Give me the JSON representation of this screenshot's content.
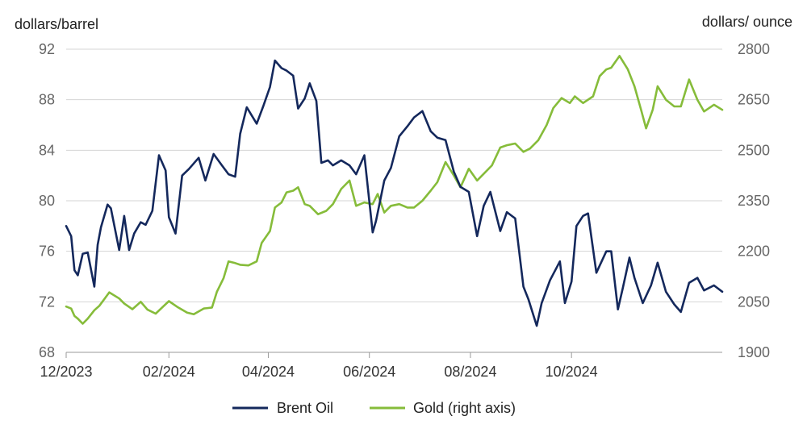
{
  "chart_data": {
    "type": "line",
    "title": "",
    "ylabel_left": "dollars/barrel",
    "ylabel_right": "dollars/ ounce",
    "x_ticks": [
      "12/2023",
      "02/2024",
      "04/2024",
      "06/2024",
      "08/2024",
      "10/2024"
    ],
    "x_range": [
      "2023-12-01",
      "2024-12-31"
    ],
    "y_left": {
      "lim": [
        68,
        92
      ],
      "ticks": [
        "68",
        "72",
        "76",
        "80",
        "84",
        "88",
        "92"
      ]
    },
    "y_right": {
      "lim": [
        1900,
        2800
      ],
      "ticks": [
        "1900",
        "2050",
        "2200",
        "2350",
        "2500",
        "2650",
        "2800"
      ]
    },
    "grid": "horizontal",
    "legend_position": "bottom-center",
    "series": [
      {
        "name": "Brent Oil",
        "axis": "left",
        "color": "#14285c",
        "x": [
          "2023-12-01",
          "2023-12-04",
          "2023-12-06",
          "2023-12-08",
          "2023-12-11",
          "2023-12-14",
          "2023-12-18",
          "2023-12-20",
          "2023-12-22",
          "2023-12-26",
          "2023-12-28",
          "2024-01-02",
          "2024-01-05",
          "2024-01-08",
          "2024-01-11",
          "2024-01-15",
          "2024-01-18",
          "2024-01-22",
          "2024-01-26",
          "2024-01-30",
          "2024-02-01",
          "2024-02-05",
          "2024-02-09",
          "2024-02-13",
          "2024-02-19",
          "2024-02-23",
          "2024-02-28",
          "2024-03-04",
          "2024-03-08",
          "2024-03-12",
          "2024-03-15",
          "2024-03-19",
          "2024-03-25",
          "2024-03-29",
          "2024-04-02",
          "2024-04-05",
          "2024-04-09",
          "2024-04-12",
          "2024-04-16",
          "2024-04-19",
          "2024-04-23",
          "2024-04-26",
          "2024-04-30",
          "2024-05-03",
          "2024-05-07",
          "2024-05-10",
          "2024-05-15",
          "2024-05-20",
          "2024-05-24",
          "2024-05-29",
          "2024-06-03",
          "2024-06-05",
          "2024-06-10",
          "2024-06-14",
          "2024-06-19",
          "2024-06-24",
          "2024-06-28",
          "2024-07-03",
          "2024-07-08",
          "2024-07-12",
          "2024-07-17",
          "2024-07-22",
          "2024-07-26",
          "2024-07-31",
          "2024-08-05",
          "2024-08-09",
          "2024-08-13",
          "2024-08-19",
          "2024-08-23",
          "2024-08-28",
          "2024-09-02",
          "2024-09-05",
          "2024-09-10",
          "2024-09-13",
          "2024-09-18",
          "2024-09-24",
          "2024-09-27",
          "2024-10-01",
          "2024-10-04",
          "2024-10-08",
          "2024-10-11",
          "2024-10-16",
          "2024-10-22",
          "2024-10-25",
          "2024-10-29",
          "2024-11-01",
          "2024-11-05",
          "2024-11-08",
          "2024-11-13",
          "2024-11-18",
          "2024-11-22",
          "2024-11-27",
          "2024-12-02",
          "2024-12-06",
          "2024-12-11",
          "2024-12-16",
          "2024-12-20",
          "2024-12-26",
          "2024-12-31"
        ],
        "y": [
          78.0,
          77.2,
          74.5,
          74.1,
          75.8,
          75.9,
          73.2,
          76.5,
          77.9,
          79.7,
          79.4,
          76.1,
          78.8,
          76.1,
          77.4,
          78.3,
          78.1,
          79.2,
          83.6,
          82.4,
          78.7,
          77.4,
          82.0,
          82.5,
          83.4,
          81.6,
          83.7,
          82.8,
          82.1,
          81.9,
          85.3,
          87.4,
          86.1,
          87.5,
          89.0,
          91.1,
          90.5,
          90.3,
          89.9,
          87.3,
          88.1,
          89.3,
          87.9,
          83.0,
          83.2,
          82.8,
          83.2,
          82.8,
          82.1,
          83.6,
          77.5,
          78.4,
          81.6,
          82.6,
          85.1,
          85.9,
          86.6,
          87.1,
          85.5,
          85.0,
          84.8,
          82.3,
          81.1,
          80.7,
          77.2,
          79.6,
          80.7,
          77.6,
          79.1,
          78.6,
          73.2,
          72.2,
          70.1,
          71.9,
          73.7,
          75.2,
          71.9,
          73.6,
          78.0,
          78.8,
          79.0,
          74.3,
          76.0,
          76.0,
          71.4,
          73.1,
          75.5,
          73.9,
          71.9,
          73.3,
          75.1,
          72.8,
          71.8,
          71.2,
          73.5,
          73.9,
          72.9,
          73.3,
          72.8
        ]
      },
      {
        "name": "Gold (right axis)",
        "axis": "right",
        "color": "#86bc3a",
        "x": [
          "2023-12-01",
          "2023-12-04",
          "2023-12-06",
          "2023-12-08",
          "2023-12-11",
          "2023-12-14",
          "2023-12-18",
          "2023-12-21",
          "2023-12-27",
          "2024-01-02",
          "2024-01-05",
          "2024-01-10",
          "2024-01-15",
          "2024-01-19",
          "2024-01-24",
          "2024-01-29",
          "2024-02-01",
          "2024-02-06",
          "2024-02-12",
          "2024-02-16",
          "2024-02-22",
          "2024-02-27",
          "2024-03-01",
          "2024-03-05",
          "2024-03-08",
          "2024-03-12",
          "2024-03-15",
          "2024-03-20",
          "2024-03-25",
          "2024-03-28",
          "2024-04-02",
          "2024-04-05",
          "2024-04-09",
          "2024-04-12",
          "2024-04-16",
          "2024-04-19",
          "2024-04-23",
          "2024-04-26",
          "2024-05-01",
          "2024-05-06",
          "2024-05-10",
          "2024-05-15",
          "2024-05-20",
          "2024-05-24",
          "2024-05-29",
          "2024-06-03",
          "2024-06-06",
          "2024-06-10",
          "2024-06-14",
          "2024-06-19",
          "2024-06-24",
          "2024-06-28",
          "2024-07-03",
          "2024-07-08",
          "2024-07-12",
          "2024-07-17",
          "2024-07-22",
          "2024-07-26",
          "2024-07-31",
          "2024-08-05",
          "2024-08-09",
          "2024-08-14",
          "2024-08-19",
          "2024-08-23",
          "2024-08-28",
          "2024-09-02",
          "2024-09-06",
          "2024-09-11",
          "2024-09-16",
          "2024-09-20",
          "2024-09-25",
          "2024-09-30",
          "2024-10-03",
          "2024-10-08",
          "2024-10-14",
          "2024-10-18",
          "2024-10-22",
          "2024-10-25",
          "2024-10-30",
          "2024-11-04",
          "2024-11-08",
          "2024-11-12",
          "2024-11-15",
          "2024-11-19",
          "2024-11-22",
          "2024-11-27",
          "2024-12-02",
          "2024-12-06",
          "2024-12-11",
          "2024-12-16",
          "2024-12-20",
          "2024-12-26",
          "2024-12-31"
        ],
        "y": [
          2036,
          2030,
          2008,
          2000,
          1985,
          2000,
          2025,
          2038,
          2078,
          2060,
          2045,
          2028,
          2050,
          2027,
          2015,
          2038,
          2052,
          2035,
          2018,
          2013,
          2030,
          2033,
          2080,
          2120,
          2170,
          2165,
          2160,
          2158,
          2170,
          2225,
          2260,
          2330,
          2345,
          2375,
          2380,
          2390,
          2340,
          2335,
          2310,
          2320,
          2340,
          2385,
          2410,
          2335,
          2345,
          2340,
          2370,
          2315,
          2335,
          2340,
          2330,
          2330,
          2350,
          2380,
          2405,
          2465,
          2425,
          2390,
          2445,
          2410,
          2430,
          2455,
          2508,
          2515,
          2520,
          2495,
          2505,
          2530,
          2575,
          2625,
          2655,
          2640,
          2660,
          2640,
          2660,
          2720,
          2740,
          2745,
          2780,
          2740,
          2690,
          2620,
          2565,
          2620,
          2690,
          2650,
          2630,
          2630,
          2710,
          2650,
          2615,
          2635,
          2620
        ]
      }
    ]
  }
}
